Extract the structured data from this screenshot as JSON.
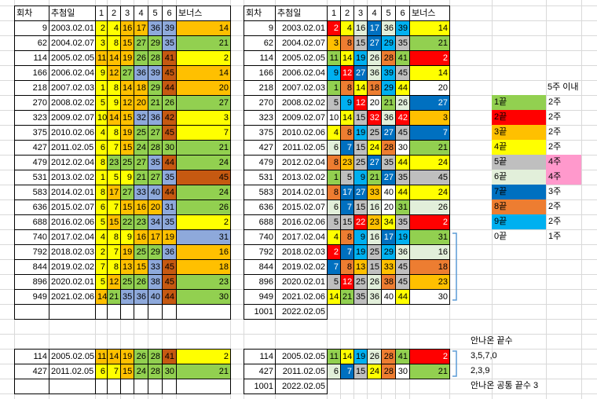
{
  "colors": {
    "1": "#92d050",
    "2": "#ff0000",
    "3": "#ffc000",
    "4": "#ffff00",
    "5": "#bfbfbf",
    "6": "#e2efda",
    "7": "#0070c0",
    "8": "#ed7d31",
    "9": "#00b0f0",
    "0": "#ffffff",
    "pink": "#ff99cc",
    "left_yellow": "#ffff00",
    "left_orange": "#ffc000",
    "left_green": "#92d050",
    "left_blue": "#8ea9db",
    "left_brown": "#c65911",
    "grid_line": "#d9d9d9"
  },
  "header": {
    "round": "회차",
    "date": "추첨일",
    "n1": "1",
    "n2": "2",
    "n3": "3",
    "n4": "4",
    "n5": "5",
    "n6": "6",
    "bonus": "보너스"
  },
  "rows": [
    {
      "round": "9",
      "date": "2003.02.01",
      "nums": [
        "2",
        "4",
        "16",
        "17",
        "36",
        "39"
      ],
      "bonus": "14"
    },
    {
      "round": "62",
      "date": "2004.02.07",
      "nums": [
        "3",
        "8",
        "15",
        "27",
        "29",
        "35"
      ],
      "bonus": "21"
    },
    {
      "round": "114",
      "date": "2005.02.05",
      "nums": [
        "11",
        "14",
        "19",
        "26",
        "28",
        "41"
      ],
      "bonus": "2"
    },
    {
      "round": "166",
      "date": "2006.02.04",
      "nums": [
        "9",
        "12",
        "27",
        "36",
        "39",
        "45"
      ],
      "bonus": "14"
    },
    {
      "round": "218",
      "date": "2007.02.03",
      "nums": [
        "1",
        "8",
        "14",
        "18",
        "29",
        "44"
      ],
      "bonus": "20"
    },
    {
      "round": "270",
      "date": "2008.02.02",
      "nums": [
        "5",
        "9",
        "12",
        "20",
        "21",
        "26"
      ],
      "bonus": "27"
    },
    {
      "round": "323",
      "date": "2009.02.07",
      "nums": [
        "10",
        "14",
        "15",
        "32",
        "36",
        "42"
      ],
      "bonus": "3"
    },
    {
      "round": "375",
      "date": "2010.02.06",
      "nums": [
        "4",
        "8",
        "19",
        "25",
        "27",
        "45"
      ],
      "bonus": "7"
    },
    {
      "round": "427",
      "date": "2011.02.05",
      "nums": [
        "6",
        "7",
        "15",
        "24",
        "28",
        "30"
      ],
      "bonus": "21"
    },
    {
      "round": "479",
      "date": "2012.02.04",
      "nums": [
        "8",
        "23",
        "25",
        "27",
        "35",
        "44"
      ],
      "bonus": "24"
    },
    {
      "round": "531",
      "date": "2013.02.02",
      "nums": [
        "1",
        "5",
        "9",
        "21",
        "27",
        "35"
      ],
      "bonus": "45"
    },
    {
      "round": "583",
      "date": "2014.02.01",
      "nums": [
        "8",
        "17",
        "27",
        "33",
        "40",
        "44"
      ],
      "bonus": "24"
    },
    {
      "round": "636",
      "date": "2015.02.07",
      "nums": [
        "6",
        "7",
        "15",
        "16",
        "20",
        "31"
      ],
      "bonus": "26"
    },
    {
      "round": "688",
      "date": "2016.02.06",
      "nums": [
        "5",
        "15",
        "22",
        "23",
        "34",
        "35"
      ],
      "bonus": "2"
    },
    {
      "round": "740",
      "date": "2017.02.04",
      "nums": [
        "4",
        "8",
        "9",
        "16",
        "17",
        "19"
      ],
      "bonus": "31"
    },
    {
      "round": "792",
      "date": "2018.02.03",
      "nums": [
        "2",
        "7",
        "19",
        "25",
        "29",
        "36"
      ],
      "bonus": "16"
    },
    {
      "round": "844",
      "date": "2019.02.02",
      "nums": [
        "7",
        "8",
        "13",
        "15",
        "33",
        "45"
      ],
      "bonus": "18"
    },
    {
      "round": "896",
      "date": "2020.02.01",
      "nums": [
        "5",
        "12",
        "25",
        "26",
        "38",
        "45"
      ],
      "bonus": "23"
    },
    {
      "round": "949",
      "date": "2021.02.06",
      "nums": [
        "14",
        "21",
        "35",
        "36",
        "40",
        "44"
      ],
      "bonus": "30"
    }
  ],
  "next_round": {
    "round": "1001",
    "date": "2022.02.05"
  },
  "bottom_rows": [
    {
      "round": "114",
      "date": "2005.02.05",
      "nums": [
        "11",
        "14",
        "19",
        "26",
        "28",
        "41"
      ],
      "bonus": "2"
    },
    {
      "round": "427",
      "date": "2011.02.05",
      "nums": [
        "6",
        "7",
        "15",
        "24",
        "28",
        "30"
      ],
      "bonus": "21"
    }
  ],
  "legend": {
    "header": "5주 이내",
    "items": [
      {
        "label": "1끝",
        "value": "2주",
        "digit": "1",
        "hl": false
      },
      {
        "label": "2끝",
        "value": "2주",
        "digit": "2",
        "hl": false
      },
      {
        "label": "3끝",
        "value": "2주",
        "digit": "3",
        "hl": false
      },
      {
        "label": "4끝",
        "value": "2주",
        "digit": "4",
        "hl": false
      },
      {
        "label": "5끝",
        "value": "4주",
        "digit": "5",
        "hl": true
      },
      {
        "label": "6끝",
        "value": "4주",
        "digit": "6",
        "hl": true
      },
      {
        "label": "7끝",
        "value": "3주",
        "digit": "7",
        "hl": false
      },
      {
        "label": "8끝",
        "value": "2주",
        "digit": "8",
        "hl": false
      },
      {
        "label": "9끝",
        "value": "2주",
        "digit": "9",
        "hl": false
      },
      {
        "label": "0끝",
        "value": "1주",
        "digit": "0",
        "hl": false
      }
    ]
  },
  "notes": {
    "title": "안나온 끝수",
    "line1": "3,5,7,0",
    "line2": "2,3,9",
    "line3": "안나온 공통 끝수 3"
  }
}
